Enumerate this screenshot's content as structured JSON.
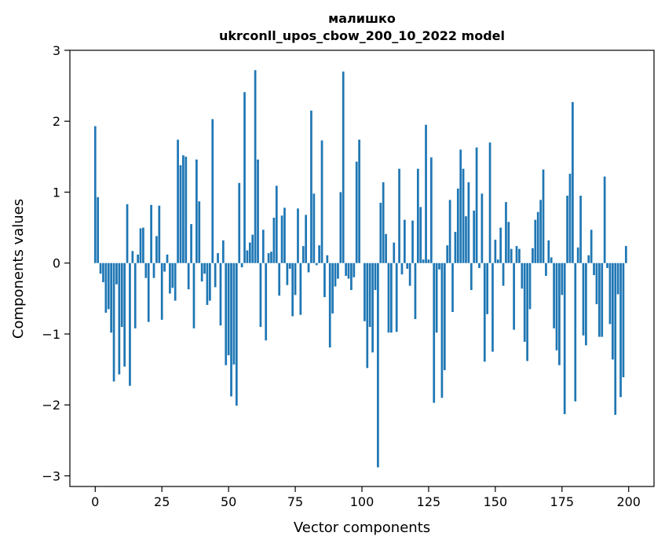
{
  "chart_data": {
    "type": "bar",
    "title_lines": [
      "малишко",
      "ukrconll_upos_cbow_200_10_2022 model"
    ],
    "xlabel": "Vector components",
    "ylabel": "Components values",
    "xlim": [
      -9.5,
      209.5
    ],
    "ylim": [
      -3.15,
      3.0
    ],
    "x_ticks": [
      0,
      25,
      50,
      75,
      100,
      125,
      150,
      175,
      200
    ],
    "x_tick_labels": [
      "0",
      "25",
      "50",
      "75",
      "100",
      "125",
      "150",
      "175",
      "200"
    ],
    "y_ticks": [
      -3,
      -2,
      -1,
      0,
      1,
      2,
      3
    ],
    "y_tick_labels": [
      "−3",
      "−2",
      "−1",
      "0",
      "1",
      "2",
      "3"
    ],
    "grid": false,
    "legend": "none",
    "bar_color": "#1f77b4",
    "x": [
      0,
      1,
      2,
      3,
      4,
      5,
      6,
      7,
      8,
      9,
      10,
      11,
      12,
      13,
      14,
      15,
      16,
      17,
      18,
      19,
      20,
      21,
      22,
      23,
      24,
      25,
      26,
      27,
      28,
      29,
      30,
      31,
      32,
      33,
      34,
      35,
      36,
      37,
      38,
      39,
      40,
      41,
      42,
      43,
      44,
      45,
      46,
      47,
      48,
      49,
      50,
      51,
      52,
      53,
      54,
      55,
      56,
      57,
      58,
      59,
      60,
      61,
      62,
      63,
      64,
      65,
      66,
      67,
      68,
      69,
      70,
      71,
      72,
      73,
      74,
      75,
      76,
      77,
      78,
      79,
      80,
      81,
      82,
      83,
      84,
      85,
      86,
      87,
      88,
      89,
      90,
      91,
      92,
      93,
      94,
      95,
      96,
      97,
      98,
      99,
      100,
      101,
      102,
      103,
      104,
      105,
      106,
      107,
      108,
      109,
      110,
      111,
      112,
      113,
      114,
      115,
      116,
      117,
      118,
      119,
      120,
      121,
      122,
      123,
      124,
      125,
      126,
      127,
      128,
      129,
      130,
      131,
      132,
      133,
      134,
      135,
      136,
      137,
      138,
      139,
      140,
      141,
      142,
      143,
      144,
      145,
      146,
      147,
      148,
      149,
      150,
      151,
      152,
      153,
      154,
      155,
      156,
      157,
      158,
      159,
      160,
      161,
      162,
      163,
      164,
      165,
      166,
      167,
      168,
      169,
      170,
      171,
      172,
      173,
      174,
      175,
      176,
      177,
      178,
      179,
      180,
      181,
      182,
      183,
      184,
      185,
      186,
      187,
      188,
      189,
      190,
      191,
      192,
      193,
      194,
      195,
      196,
      197,
      198,
      199
    ],
    "values": [
      1.93,
      0.93,
      -0.15,
      -0.27,
      -0.7,
      -0.65,
      -0.98,
      -1.67,
      -0.3,
      -1.57,
      -0.9,
      -1.46,
      0.83,
      -1.73,
      0.17,
      -0.92,
      0.12,
      0.49,
      0.5,
      -0.21,
      -0.83,
      0.82,
      -0.21,
      0.38,
      0.81,
      -0.8,
      -0.12,
      0.12,
      -0.43,
      -0.35,
      -0.53,
      1.74,
      1.38,
      1.52,
      1.5,
      -0.37,
      0.55,
      -0.92,
      1.46,
      0.87,
      -0.26,
      -0.15,
      -0.59,
      -0.53,
      2.03,
      -0.34,
      0.14,
      -0.88,
      0.32,
      -1.44,
      -1.3,
      -1.88,
      -1.43,
      -2.01,
      1.13,
      -0.06,
      2.41,
      0.18,
      0.29,
      0.4,
      2.72,
      1.46,
      -0.9,
      0.47,
      -1.09,
      0.14,
      0.16,
      0.64,
      1.09,
      -0.46,
      0.67,
      0.78,
      -0.31,
      -0.08,
      -0.75,
      -0.45,
      0.77,
      -0.73,
      0.24,
      0.68,
      -0.13,
      2.15,
      0.98,
      -0.03,
      0.25,
      1.73,
      -0.48,
      0.11,
      -1.19,
      -0.71,
      -0.33,
      -0.22,
      1.0,
      2.7,
      -0.18,
      -0.22,
      -0.38,
      -0.2,
      1.43,
      1.74,
      0.0,
      -0.82,
      -1.48,
      -0.9,
      -1.26,
      -0.38,
      -2.88,
      0.85,
      1.14,
      0.41,
      -0.98,
      -0.98,
      0.29,
      -0.97,
      1.33,
      -0.16,
      0.61,
      -0.08,
      -0.32,
      0.6,
      -0.79,
      1.33,
      0.79,
      0.05,
      1.95,
      0.05,
      1.49,
      -1.97,
      -0.98,
      -0.09,
      -1.9,
      -1.51,
      0.25,
      0.89,
      -0.69,
      0.44,
      1.05,
      1.6,
      1.33,
      0.66,
      1.14,
      -0.38,
      0.74,
      1.63,
      -0.07,
      0.98,
      -1.39,
      -0.72,
      1.7,
      -1.25,
      0.33,
      0.05,
      0.5,
      -0.32,
      0.86,
      0.58,
      0.2,
      -0.94,
      0.24,
      0.2,
      -0.36,
      -1.11,
      -1.38,
      -0.65,
      0.21,
      0.61,
      0.72,
      0.89,
      1.32,
      -0.18,
      0.32,
      0.08,
      -0.92,
      -1.23,
      -1.44,
      -0.45,
      -2.13,
      0.95,
      1.26,
      2.27,
      -1.95,
      0.22,
      0.95,
      -1.02,
      -1.16,
      0.11,
      0.47,
      -0.17,
      -0.58,
      -1.04,
      -1.04,
      1.22,
      -0.07,
      -0.86,
      -1.36,
      -2.14,
      -0.44,
      -1.89,
      -1.61,
      0.24
    ]
  }
}
